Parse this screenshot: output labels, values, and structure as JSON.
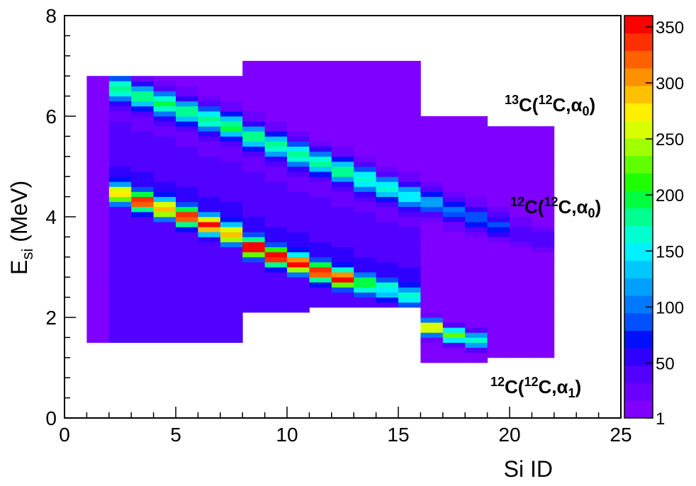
{
  "chart_data": {
    "type": "heatmap",
    "title": "",
    "xlabel": "Si ID",
    "ylabel": {
      "base": "E",
      "sub": "si",
      "rest": " (MeV)"
    },
    "xlim": [
      0,
      25
    ],
    "ylim": [
      0,
      8
    ],
    "x_ticks": [
      "0",
      "5",
      "10",
      "15",
      "20",
      "25"
    ],
    "y_ticks": [
      "0",
      "2",
      "4",
      "6",
      "8"
    ],
    "colorbar": {
      "range": [
        1,
        360
      ],
      "ticks": [
        "1",
        "50",
        "100",
        "150",
        "200",
        "250",
        "300",
        "350"
      ],
      "colors": [
        "#7f00ff",
        "#6a00ff",
        "#5200ff",
        "#3000ff",
        "#0010ff",
        "#0050ff",
        "#0078ff",
        "#00a0ff",
        "#00c8ff",
        "#00f0ff",
        "#00ffd0",
        "#00ff90",
        "#00ff40",
        "#20ff00",
        "#60ff00",
        "#a0ff00",
        "#d8ff00",
        "#ffee00",
        "#ffc000",
        "#ff9000",
        "#ff6000",
        "#ff3000",
        "#ff0000"
      ]
    },
    "bands": [
      {
        "name": "13C(12C,a0)",
        "x": [
          2.5,
          3.5,
          4.5,
          5.5,
          6.5,
          7.5,
          8.5,
          9.5,
          10.5,
          11.5,
          12.5,
          13.5,
          14.5,
          15.5,
          16.5,
          17.5,
          18.5,
          19.5,
          20.5,
          21.5
        ],
        "y": [
          6.55,
          6.4,
          6.25,
          6.1,
          5.95,
          5.8,
          5.6,
          5.42,
          5.25,
          5.08,
          4.92,
          4.75,
          4.58,
          4.42,
          4.28,
          4.1,
          3.95,
          3.8,
          3.65,
          3.5
        ],
        "peak": [
          180,
          170,
          185,
          175,
          170,
          180,
          175,
          165,
          170,
          160,
          170,
          165,
          150,
          140,
          110,
          90,
          80,
          70,
          40,
          30
        ]
      },
      {
        "name": "12C(12C,a0)",
        "x": [
          2.5,
          3.5,
          4.5,
          5.5,
          6.5,
          7.5,
          8.5,
          9.5,
          10.5,
          11.5,
          12.5,
          13.5,
          14.5,
          15.5
        ],
        "y": [
          4.45,
          4.3,
          4.15,
          4.0,
          3.83,
          3.65,
          3.38,
          3.2,
          3.06,
          2.9,
          2.77,
          2.65,
          2.55,
          2.4
        ],
        "peak": [
          275,
          305,
          290,
          310,
          320,
          290,
          345,
          335,
          325,
          310,
          315,
          190,
          150,
          120
        ]
      },
      {
        "name": "12C(12C,a1)",
        "x": [
          16.5,
          17.5,
          18.5
        ],
        "y": [
          1.8,
          1.65,
          1.55
        ],
        "peak": [
          270,
          210,
          160
        ]
      }
    ],
    "annotations": [
      {
        "pre": "13",
        "mid": "C(",
        "pre2": "12",
        "post": "C,α",
        "sub": "0",
        "end": ")"
      },
      {
        "pre": "12",
        "mid": "C(",
        "pre2": "12",
        "post": "C,α",
        "sub": "0",
        "end": ")"
      },
      {
        "pre": "12",
        "mid": "C(",
        "pre2": "12",
        "post": "C,α",
        "sub": "1",
        "end": ")"
      }
    ]
  }
}
